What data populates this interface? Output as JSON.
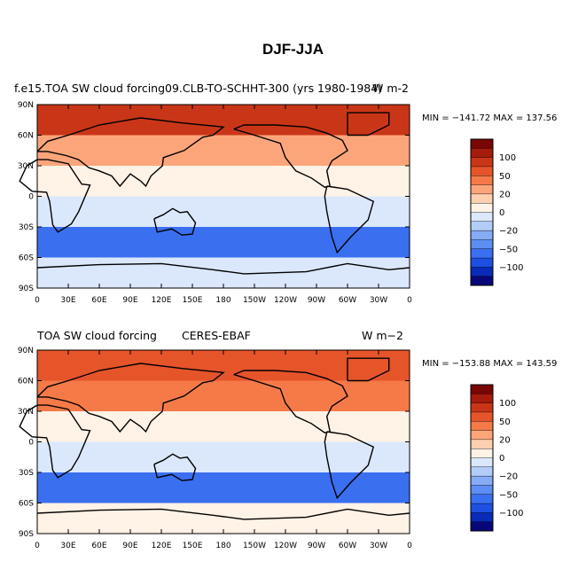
{
  "title": "DJF-JJA",
  "panels": [
    {
      "left_title": "f.e15.TOA SW cloud forcing09.CLB-TO-SCHHT-300 (yrs 1980-1984)",
      "center_title": "",
      "units": "W m-2",
      "min_max": "MIN = −141.72 MAX = 137.56"
    },
    {
      "left_title": "TOA SW cloud forcing",
      "center_title": "CERES-EBAF",
      "units": "W m−2",
      "min_max": "MIN = −153.88 MAX = 143.59"
    }
  ],
  "colors": {
    "palette": [
      "#08077a",
      "#0a2bb8",
      "#1d4fe0",
      "#3a6ff0",
      "#5d8ef3",
      "#86acf6",
      "#b3cdf9",
      "#dbe8fc",
      "#fff2e6",
      "#fdd0b0",
      "#fca57b",
      "#f57a48",
      "#e6542a",
      "#c93617",
      "#a51b0c",
      "#7a0505"
    ],
    "land_outline": "#000000"
  },
  "chart_data": [
    {
      "type": "heatmap",
      "title": "f.e15.TOA SW cloud forcing09.CLB-TO-SCHHT-300 (yrs 1980-1984)",
      "subtitle": "DJF-JJA",
      "units": "W m-2",
      "min": -141.72,
      "max": 137.56,
      "x_tick_labels": [
        "0",
        "30E",
        "60E",
        "90E",
        "120E",
        "150E",
        "180",
        "150W",
        "120W",
        "90W",
        "60W",
        "30W",
        "0"
      ],
      "y_tick_labels": [
        "90N",
        "60N",
        "30N",
        "0",
        "30S",
        "60S",
        "90S"
      ],
      "xlim": [
        0,
        360
      ],
      "ylim": [
        -90,
        90
      ],
      "colorbar_labels": [
        "100",
        "50",
        "20",
        "0",
        "−20",
        "−50",
        "−100"
      ],
      "latitude_bands": [
        {
          "lat": [
            60,
            90
          ],
          "value": 80
        },
        {
          "lat": [
            30,
            60
          ],
          "value": 45
        },
        {
          "lat": [
            0,
            30
          ],
          "value": 15
        },
        {
          "lat": [
            -30,
            0
          ],
          "value": -20
        },
        {
          "lat": [
            -60,
            -30
          ],
          "value": -70
        },
        {
          "lat": [
            -90,
            -60
          ],
          "value": -10
        }
      ]
    },
    {
      "type": "heatmap",
      "title": "TOA SW cloud forcing",
      "subtitle": "CERES-EBAF",
      "units": "W m−2",
      "min": -153.88,
      "max": 143.59,
      "x_tick_labels": [
        "0",
        "30E",
        "60E",
        "90E",
        "120E",
        "150E",
        "180",
        "150W",
        "120W",
        "90W",
        "60W",
        "30W",
        "0"
      ],
      "y_tick_labels": [
        "90N",
        "60N",
        "30N",
        "0",
        "30S",
        "60S",
        "90S"
      ],
      "xlim": [
        0,
        360
      ],
      "ylim": [
        -90,
        90
      ],
      "colorbar_labels": [
        "100",
        "50",
        "20",
        "0",
        "−20",
        "−50",
        "−100"
      ],
      "latitude_bands": [
        {
          "lat": [
            60,
            90
          ],
          "value": 75
        },
        {
          "lat": [
            30,
            60
          ],
          "value": 50
        },
        {
          "lat": [
            0,
            30
          ],
          "value": 15
        },
        {
          "lat": [
            -30,
            0
          ],
          "value": -20
        },
        {
          "lat": [
            -60,
            -30
          ],
          "value": -80
        },
        {
          "lat": [
            -90,
            -60
          ],
          "value": 5
        }
      ]
    }
  ]
}
